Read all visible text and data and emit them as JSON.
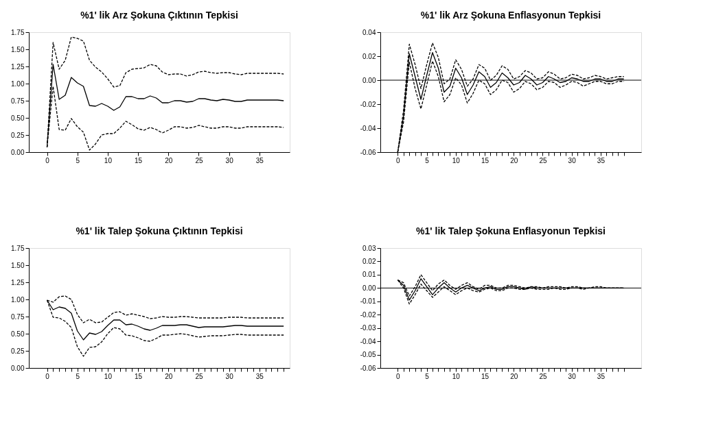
{
  "chart_data": [
    {
      "type": "line",
      "title": "%1' lik Arz  Şokuna Çıktının Tepkisi",
      "x": [
        0,
        1,
        2,
        3,
        4,
        5,
        6,
        7,
        8,
        9,
        10,
        11,
        12,
        13,
        14,
        15,
        16,
        17,
        18,
        19,
        20,
        21,
        22,
        23,
        24,
        25,
        26,
        27,
        28,
        29,
        30,
        31,
        32,
        33,
        34,
        35,
        36,
        37,
        38,
        39
      ],
      "xlim": [
        -3,
        40
      ],
      "xticks": [
        0,
        5,
        10,
        15,
        20,
        25,
        30,
        35
      ],
      "ylim": [
        0,
        1.75
      ],
      "yticks": [
        {
          "value": 0,
          "label": "0.00"
        },
        {
          "value": 0.25,
          "label": "0.25"
        },
        {
          "value": 0.5,
          "label": "0.50"
        },
        {
          "value": 0.75,
          "label": "0.75"
        },
        {
          "value": 1,
          "label": "1.00"
        },
        {
          "value": 1.25,
          "label": "1.25"
        },
        {
          "value": 1.5,
          "label": "1.50"
        },
        {
          "value": 1.75,
          "label": "1.75"
        }
      ],
      "grid": false,
      "series": [
        {
          "color": "#000000",
          "line_style": "dashed",
          "values": [
            0.07,
            1.6,
            1.21,
            1.34,
            1.68,
            1.66,
            1.62,
            1.34,
            1.24,
            1.17,
            1.07,
            0.95,
            0.97,
            1.16,
            1.21,
            1.22,
            1.23,
            1.28,
            1.26,
            1.17,
            1.13,
            1.14,
            1.14,
            1.11,
            1.13,
            1.17,
            1.18,
            1.16,
            1.15,
            1.16,
            1.16,
            1.14,
            1.13,
            1.15,
            1.15,
            1.15,
            1.15,
            1.15,
            1.15,
            1.14
          ]
        },
        {
          "color": "#000000",
          "line_style": "solid",
          "values": [
            0.07,
            1.28,
            0.77,
            0.83,
            1.09,
            1.01,
            0.96,
            0.68,
            0.67,
            0.71,
            0.67,
            0.61,
            0.66,
            0.81,
            0.81,
            0.78,
            0.78,
            0.82,
            0.79,
            0.72,
            0.72,
            0.75,
            0.75,
            0.73,
            0.74,
            0.78,
            0.78,
            0.76,
            0.75,
            0.77,
            0.76,
            0.74,
            0.74,
            0.76,
            0.76,
            0.76,
            0.76,
            0.76,
            0.76,
            0.75
          ]
        },
        {
          "color": "#000000",
          "line_style": "dashed",
          "values": [
            0.07,
            0.96,
            0.33,
            0.32,
            0.49,
            0.37,
            0.29,
            0.03,
            0.12,
            0.25,
            0.27,
            0.27,
            0.35,
            0.45,
            0.4,
            0.34,
            0.32,
            0.36,
            0.33,
            0.28,
            0.32,
            0.37,
            0.37,
            0.35,
            0.36,
            0.39,
            0.37,
            0.35,
            0.35,
            0.37,
            0.37,
            0.35,
            0.35,
            0.37,
            0.37,
            0.37,
            0.37,
            0.37,
            0.37,
            0.36
          ]
        }
      ]
    },
    {
      "type": "line",
      "title": "%1' lik Arz Şokuna Enflasyonun Tepkisi",
      "x": [
        0,
        1,
        2,
        3,
        4,
        5,
        6,
        7,
        8,
        9,
        10,
        11,
        12,
        13,
        14,
        15,
        16,
        17,
        18,
        19,
        20,
        21,
        22,
        23,
        24,
        25,
        26,
        27,
        28,
        29,
        30,
        31,
        32,
        33,
        34,
        35,
        36,
        37,
        38,
        39
      ],
      "xlim": [
        -3,
        42
      ],
      "xticks": [
        0,
        {
          "value": 1,
          "label": null
        },
        {
          "value": 2,
          "label": null
        },
        {
          "value": 3,
          "label": null
        },
        {
          "value": 4,
          "label": null
        },
        5,
        {
          "value": 6,
          "label": null
        },
        {
          "value": 7,
          "label": null
        },
        {
          "value": 8,
          "label": null
        },
        {
          "value": 9,
          "label": null
        },
        10,
        {
          "value": 11,
          "label": null
        },
        {
          "value": 12,
          "label": null
        },
        {
          "value": 13,
          "label": null
        },
        {
          "value": 14,
          "label": null
        },
        15,
        {
          "value": 16,
          "label": null
        },
        {
          "value": 17,
          "label": null
        },
        {
          "value": 18,
          "label": null
        },
        {
          "value": 19,
          "label": null
        },
        20,
        {
          "value": 21,
          "label": null
        },
        {
          "value": 22,
          "label": null
        },
        {
          "value": 23,
          "label": null
        },
        {
          "value": 24,
          "label": null
        },
        25,
        {
          "value": 26,
          "label": null
        },
        {
          "value": 27,
          "label": null
        },
        {
          "value": 28,
          "label": null
        },
        {
          "value": 29,
          "label": null
        },
        30,
        {
          "value": 31,
          "label": null
        },
        {
          "value": 32,
          "label": null
        },
        {
          "value": 33,
          "label": null
        },
        {
          "value": 34,
          "label": null
        },
        35,
        {
          "value": 36,
          "label": null
        },
        {
          "value": 37,
          "label": null
        },
        {
          "value": 38,
          "label": null
        },
        {
          "value": 39,
          "label": null
        }
      ],
      "ylim": [
        -0.06,
        0.04
      ],
      "yticks": [
        {
          "value": -0.06,
          "label": "-0.06"
        },
        {
          "value": -0.04,
          "label": "-0.04"
        },
        {
          "value": -0.02,
          "label": "-0.02"
        },
        {
          "value": 0,
          "label": "0.00"
        },
        {
          "value": 0.02,
          "label": "0.02"
        },
        {
          "value": 0.04,
          "label": "0.04"
        }
      ],
      "grid": false,
      "ref_lines": [
        {
          "axis": "y",
          "value": 0,
          "color": "#000000"
        }
      ],
      "series": [
        {
          "color": "#000000",
          "line_style": "dashed",
          "values": [
            -0.06,
            -0.025,
            0.03,
            0.013,
            -0.007,
            0.013,
            0.031,
            0.019,
            -0.003,
            0.001,
            0.017,
            0.009,
            -0.005,
            0.001,
            0.013,
            0.01,
            0.0,
            0.004,
            0.012,
            0.009,
            0.001,
            0.003,
            0.008,
            0.006,
            0.001,
            0.002,
            0.007,
            0.005,
            0.001,
            0.002,
            0.005,
            0.004,
            0.001,
            0.002,
            0.004,
            0.003,
            0.001,
            0.002,
            0.003,
            0.003
          ]
        },
        {
          "color": "#000000",
          "line_style": "solid",
          "values": [
            -0.06,
            -0.03,
            0.022,
            0.003,
            -0.016,
            0.004,
            0.023,
            0.01,
            -0.01,
            -0.005,
            0.01,
            0.002,
            -0.012,
            -0.004,
            0.007,
            0.003,
            -0.006,
            -0.002,
            0.006,
            0.002,
            -0.004,
            -0.002,
            0.004,
            0.001,
            -0.004,
            -0.002,
            0.003,
            0.001,
            -0.002,
            -0.001,
            0.002,
            0.001,
            -0.001,
            -0.001,
            0.001,
            0.001,
            -0.001,
            -0.001,
            0.001,
            0.001
          ]
        },
        {
          "color": "#000000",
          "line_style": "dashed",
          "values": [
            -0.06,
            -0.035,
            0.015,
            -0.007,
            -0.024,
            -0.004,
            0.016,
            0.003,
            -0.018,
            -0.012,
            0.002,
            -0.004,
            -0.019,
            -0.011,
            0.0,
            -0.003,
            -0.012,
            -0.008,
            0.0,
            -0.002,
            -0.01,
            -0.007,
            -0.001,
            -0.003,
            -0.008,
            -0.006,
            -0.001,
            -0.002,
            -0.006,
            -0.004,
            -0.001,
            -0.002,
            -0.005,
            -0.003,
            -0.001,
            -0.001,
            -0.003,
            -0.003,
            -0.001,
            -0.001
          ]
        }
      ]
    },
    {
      "type": "line",
      "title": "%1' lik Talep Şokuna Çıktının Tepkisi",
      "x": [
        0,
        1,
        2,
        3,
        4,
        5,
        6,
        7,
        8,
        9,
        10,
        11,
        12,
        13,
        14,
        15,
        16,
        17,
        18,
        19,
        20,
        21,
        22,
        23,
        24,
        25,
        26,
        27,
        28,
        29,
        30,
        31,
        32,
        33,
        34,
        35,
        36,
        37,
        38,
        39
      ],
      "xlim": [
        -3,
        40
      ],
      "xticks": [
        0,
        {
          "value": 1,
          "label": null
        },
        {
          "value": 2,
          "label": null
        },
        {
          "value": 3,
          "label": null
        },
        {
          "value": 4,
          "label": null
        },
        5,
        {
          "value": 6,
          "label": null
        },
        {
          "value": 7,
          "label": null
        },
        {
          "value": 8,
          "label": null
        },
        {
          "value": 9,
          "label": null
        },
        10,
        {
          "value": 11,
          "label": null
        },
        {
          "value": 12,
          "label": null
        },
        {
          "value": 13,
          "label": null
        },
        {
          "value": 14,
          "label": null
        },
        15,
        {
          "value": 16,
          "label": null
        },
        {
          "value": 17,
          "label": null
        },
        {
          "value": 18,
          "label": null
        },
        {
          "value": 19,
          "label": null
        },
        20,
        {
          "value": 21,
          "label": null
        },
        {
          "value": 22,
          "label": null
        },
        {
          "value": 23,
          "label": null
        },
        {
          "value": 24,
          "label": null
        },
        25,
        {
          "value": 26,
          "label": null
        },
        {
          "value": 27,
          "label": null
        },
        {
          "value": 28,
          "label": null
        },
        {
          "value": 29,
          "label": null
        },
        30,
        {
          "value": 31,
          "label": null
        },
        {
          "value": 32,
          "label": null
        },
        {
          "value": 33,
          "label": null
        },
        {
          "value": 34,
          "label": null
        },
        35,
        {
          "value": 36,
          "label": null
        },
        {
          "value": 37,
          "label": null
        },
        {
          "value": 38,
          "label": null
        },
        {
          "value": 39,
          "label": null
        }
      ],
      "ylim": [
        0,
        1.75
      ],
      "yticks": [
        {
          "value": 0,
          "label": "0.00"
        },
        {
          "value": 0.25,
          "label": "0.25"
        },
        {
          "value": 0.5,
          "label": "0.50"
        },
        {
          "value": 0.75,
          "label": "0.75"
        },
        {
          "value": 1,
          "label": "1.00"
        },
        {
          "value": 1.25,
          "label": "1.25"
        },
        {
          "value": 1.5,
          "label": "1.50"
        },
        {
          "value": 1.75,
          "label": "1.75"
        }
      ],
      "grid": false,
      "series": [
        {
          "color": "#000000",
          "line_style": "dashed",
          "values": [
            0.99,
            0.96,
            1.04,
            1.05,
            1.0,
            0.78,
            0.66,
            0.71,
            0.66,
            0.67,
            0.74,
            0.81,
            0.82,
            0.77,
            0.79,
            0.77,
            0.75,
            0.72,
            0.73,
            0.75,
            0.74,
            0.74,
            0.75,
            0.75,
            0.74,
            0.73,
            0.73,
            0.73,
            0.73,
            0.73,
            0.74,
            0.74,
            0.74,
            0.73,
            0.73,
            0.73,
            0.73,
            0.73,
            0.73,
            0.73
          ]
        },
        {
          "color": "#000000",
          "line_style": "solid",
          "values": [
            0.99,
            0.85,
            0.89,
            0.87,
            0.8,
            0.54,
            0.41,
            0.51,
            0.49,
            0.53,
            0.62,
            0.7,
            0.7,
            0.63,
            0.64,
            0.61,
            0.57,
            0.55,
            0.58,
            0.62,
            0.62,
            0.62,
            0.63,
            0.63,
            0.61,
            0.59,
            0.6,
            0.6,
            0.6,
            0.6,
            0.61,
            0.62,
            0.62,
            0.61,
            0.61,
            0.61,
            0.61,
            0.61,
            0.61,
            0.61
          ]
        },
        {
          "color": "#000000",
          "line_style": "dashed",
          "values": [
            0.99,
            0.74,
            0.73,
            0.68,
            0.59,
            0.31,
            0.17,
            0.3,
            0.31,
            0.38,
            0.5,
            0.59,
            0.57,
            0.48,
            0.47,
            0.44,
            0.4,
            0.39,
            0.43,
            0.48,
            0.48,
            0.49,
            0.5,
            0.49,
            0.47,
            0.45,
            0.46,
            0.47,
            0.47,
            0.47,
            0.48,
            0.49,
            0.49,
            0.48,
            0.48,
            0.48,
            0.48,
            0.48,
            0.48,
            0.48
          ]
        }
      ]
    },
    {
      "type": "line",
      "title": "%1' lik Talep Şokuna Enflasyonun Tepkisi",
      "x": [
        0,
        1,
        2,
        3,
        4,
        5,
        6,
        7,
        8,
        9,
        10,
        11,
        12,
        13,
        14,
        15,
        16,
        17,
        18,
        19,
        20,
        21,
        22,
        23,
        24,
        25,
        26,
        27,
        28,
        29,
        30,
        31,
        32,
        33,
        34,
        35,
        36,
        37,
        38,
        39
      ],
      "xlim": [
        -3,
        42
      ],
      "xticks": [
        0,
        {
          "value": 1,
          "label": null
        },
        {
          "value": 2,
          "label": null
        },
        {
          "value": 3,
          "label": null
        },
        {
          "value": 4,
          "label": null
        },
        5,
        {
          "value": 6,
          "label": null
        },
        {
          "value": 7,
          "label": null
        },
        {
          "value": 8,
          "label": null
        },
        {
          "value": 9,
          "label": null
        },
        10,
        {
          "value": 11,
          "label": null
        },
        {
          "value": 12,
          "label": null
        },
        {
          "value": 13,
          "label": null
        },
        {
          "value": 14,
          "label": null
        },
        15,
        {
          "value": 16,
          "label": null
        },
        {
          "value": 17,
          "label": null
        },
        {
          "value": 18,
          "label": null
        },
        {
          "value": 19,
          "label": null
        },
        20,
        {
          "value": 21,
          "label": null
        },
        {
          "value": 22,
          "label": null
        },
        {
          "value": 23,
          "label": null
        },
        {
          "value": 24,
          "label": null
        },
        25,
        {
          "value": 26,
          "label": null
        },
        {
          "value": 27,
          "label": null
        },
        {
          "value": 28,
          "label": null
        },
        {
          "value": 29,
          "label": null
        },
        30,
        {
          "value": 31,
          "label": null
        },
        {
          "value": 32,
          "label": null
        },
        {
          "value": 33,
          "label": null
        },
        {
          "value": 34,
          "label": null
        },
        35,
        {
          "value": 36,
          "label": null
        },
        {
          "value": 37,
          "label": null
        },
        {
          "value": 38,
          "label": null
        },
        {
          "value": 39,
          "label": null
        }
      ],
      "ylim": [
        -0.06,
        0.03
      ],
      "yticks": [
        {
          "value": -0.06,
          "label": "-0.06"
        },
        {
          "value": -0.05,
          "label": "-0.05"
        },
        {
          "value": -0.04,
          "label": "-0.04"
        },
        {
          "value": -0.03,
          "label": "-0.03"
        },
        {
          "value": -0.02,
          "label": "-0.02"
        },
        {
          "value": -0.01,
          "label": "-0.01"
        },
        {
          "value": 0,
          "label": "0.00"
        },
        {
          "value": 0.01,
          "label": "0.01"
        },
        {
          "value": 0.02,
          "label": "0.02"
        },
        {
          "value": 0.03,
          "label": "0.03"
        }
      ],
      "grid": false,
      "ref_lines": [
        {
          "axis": "y",
          "value": 0,
          "color": "#000000"
        }
      ],
      "series": [
        {
          "color": "#000000",
          "line_style": "dashed",
          "values": [
            0.006,
            0.004,
            -0.006,
            0.001,
            0.01,
            0.004,
            -0.002,
            0.003,
            0.006,
            0.002,
            -0.001,
            0.002,
            0.004,
            0.001,
            -0.001,
            0.002,
            0.002,
            0.0,
            0.0,
            0.002,
            0.002,
            0.001,
            0.0,
            0.001,
            0.001,
            0.0,
            0.001,
            0.001,
            0.001,
            0.0,
            0.001,
            0.001,
            0.0,
            0.0,
            0.001,
            0.001,
            0.0,
            0.0,
            0.0,
            0.0
          ]
        },
        {
          "color": "#000000",
          "line_style": "solid",
          "values": [
            0.006,
            0.002,
            -0.009,
            -0.002,
            0.007,
            0.001,
            -0.005,
            0.0,
            0.004,
            0.0,
            -0.003,
            0.0,
            0.002,
            0.0,
            -0.002,
            0.0,
            0.001,
            -0.001,
            -0.001,
            0.001,
            0.001,
            0.0,
            -0.001,
            0.001,
            0.0,
            0.0,
            0.0,
            0.0,
            0.0,
            0.0,
            0.0,
            0.0,
            0.0,
            0.0,
            0.0,
            0.0,
            0.0,
            0.0,
            0.0,
            0.0
          ]
        },
        {
          "color": "#000000",
          "line_style": "dashed",
          "values": [
            0.006,
            0.0,
            -0.012,
            -0.005,
            0.003,
            -0.002,
            -0.007,
            -0.003,
            0.001,
            -0.002,
            -0.005,
            -0.002,
            0.0,
            -0.002,
            -0.003,
            -0.001,
            0.0,
            -0.002,
            -0.002,
            0.0,
            0.0,
            -0.001,
            -0.001,
            0.0,
            -0.001,
            -0.001,
            -0.001,
            0.0,
            -0.001,
            -0.001,
            0.0,
            0.0,
            -0.001,
            0.0,
            0.0,
            0.0,
            0.0,
            0.0,
            0.0,
            0.0
          ]
        }
      ]
    }
  ]
}
